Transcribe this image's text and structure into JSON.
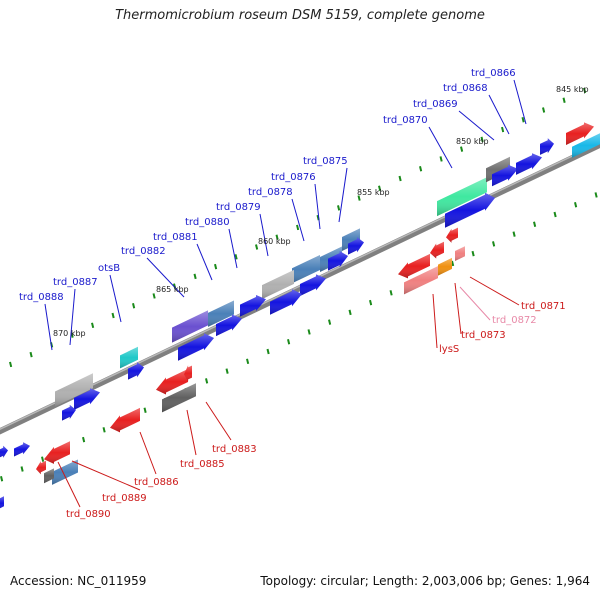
{
  "title": "Thermomicrobium roseum DSM 5159, complete genome",
  "footer": {
    "accession": "Accession: NC_011959",
    "summary": "Topology: circular; Length: 2,003,006 bp; Genes: 1,964"
  },
  "colors": {
    "backbone": "#808080",
    "forward_label": "#1a1acc",
    "reverse_label": "#cc1a1a",
    "tick": "#1a8a1a"
  },
  "ruler": [
    "845 kbp",
    "850 kbp",
    "855 kbp",
    "860 kbp",
    "865 kbp",
    "870 kbp"
  ],
  "forward_genes": [
    "trd_0866",
    "trd_0868",
    "trd_0869",
    "trd_0870",
    "trd_0875",
    "trd_0876",
    "trd_0878",
    "trd_0879",
    "trd_0880",
    "trd_0881",
    "trd_0882",
    "otsB",
    "trd_0887",
    "trd_0888"
  ],
  "reverse_genes": [
    "trd_0871",
    "trd_0872",
    "trd_0873",
    "lysS",
    "trd_0883",
    "trd_0885",
    "trd_0886",
    "trd_0889",
    "trd_0890"
  ]
}
